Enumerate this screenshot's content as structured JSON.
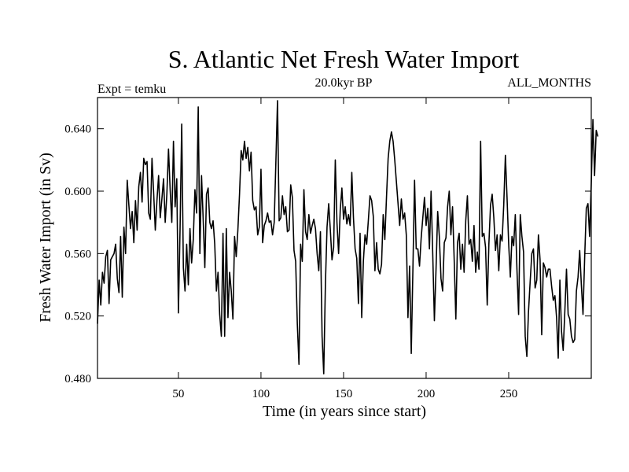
{
  "chart_data": {
    "type": "line",
    "title": "S. Atlantic Net Fresh Water Import",
    "subtitle": "20.0kyr BP",
    "left_note": "Expt = temku",
    "right_note": "ALL_MONTHS",
    "xlabel": "Time (in years since start)",
    "ylabel": "Fresh Water Import (in Sv)",
    "xlim": [
      1,
      300
    ],
    "ylim": [
      0.48,
      0.66
    ],
    "x_ticks": [
      50,
      100,
      150,
      200,
      250
    ],
    "x_tick_labels": [
      "50",
      "100",
      "150",
      "200",
      "250"
    ],
    "y_ticks": [
      0.48,
      0.52,
      0.56,
      0.6,
      0.64
    ],
    "y_tick_labels": [
      "0.480",
      "0.520",
      "0.560",
      "0.600",
      "0.640"
    ],
    "grid": false,
    "series": [
      {
        "name": "Fresh Water Import",
        "color": "#000000",
        "x_start": 1,
        "x_step": 1,
        "values": [
          0.515,
          0.543,
          0.527,
          0.548,
          0.541,
          0.558,
          0.562,
          0.528,
          0.556,
          0.558,
          0.56,
          0.566,
          0.544,
          0.535,
          0.571,
          0.532,
          0.577,
          0.56,
          0.607,
          0.591,
          0.576,
          0.587,
          0.567,
          0.594,
          0.575,
          0.603,
          0.612,
          0.593,
          0.621,
          0.617,
          0.619,
          0.586,
          0.582,
          0.621,
          0.599,
          0.575,
          0.594,
          0.61,
          0.583,
          0.595,
          0.608,
          0.58,
          0.598,
          0.627,
          0.601,
          0.58,
          0.632,
          0.59,
          0.608,
          0.522,
          0.576,
          0.643,
          0.551,
          0.536,
          0.566,
          0.54,
          0.576,
          0.554,
          0.569,
          0.601,
          0.586,
          0.654,
          0.56,
          0.61,
          0.582,
          0.551,
          0.598,
          0.602,
          0.58,
          0.576,
          0.581,
          0.566,
          0.536,
          0.548,
          0.521,
          0.507,
          0.573,
          0.507,
          0.576,
          0.519,
          0.548,
          0.536,
          0.518,
          0.571,
          0.558,
          0.575,
          0.598,
          0.626,
          0.62,
          0.632,
          0.621,
          0.628,
          0.613,
          0.625,
          0.594,
          0.588,
          0.59,
          0.572,
          0.577,
          0.614,
          0.567,
          0.578,
          0.581,
          0.586,
          0.58,
          0.581,
          0.572,
          0.58,
          0.618,
          0.658,
          0.581,
          0.583,
          0.597,
          0.585,
          0.59,
          0.574,
          0.575,
          0.604,
          0.596,
          0.562,
          0.555,
          0.515,
          0.489,
          0.566,
          0.555,
          0.601,
          0.574,
          0.569,
          0.585,
          0.573,
          0.578,
          0.582,
          0.576,
          0.56,
          0.549,
          0.574,
          0.507,
          0.483,
          0.54,
          0.577,
          0.592,
          0.575,
          0.556,
          0.564,
          0.62,
          0.58,
          0.56,
          0.588,
          0.602,
          0.582,
          0.59,
          0.579,
          0.585,
          0.578,
          0.612,
          0.583,
          0.563,
          0.557,
          0.528,
          0.573,
          0.519,
          0.555,
          0.572,
          0.566,
          0.581,
          0.597,
          0.594,
          0.584,
          0.549,
          0.567,
          0.55,
          0.547,
          0.553,
          0.585,
          0.569,
          0.596,
          0.621,
          0.632,
          0.638,
          0.632,
          0.62,
          0.606,
          0.592,
          0.578,
          0.595,
          0.582,
          0.586,
          0.572,
          0.519,
          0.552,
          0.496,
          0.55,
          0.607,
          0.563,
          0.563,
          0.552,
          0.57,
          0.583,
          0.596,
          0.578,
          0.589,
          0.563,
          0.6,
          0.56,
          0.517,
          0.55,
          0.587,
          0.571,
          0.544,
          0.536,
          0.567,
          0.57,
          0.59,
          0.6,
          0.572,
          0.59,
          0.556,
          0.518,
          0.567,
          0.573,
          0.55,
          0.566,
          0.548,
          0.581,
          0.597,
          0.566,
          0.569,
          0.555,
          0.578,
          0.548,
          0.561,
          0.55,
          0.632,
          0.571,
          0.573,
          0.564,
          0.527,
          0.566,
          0.591,
          0.598,
          0.583,
          0.562,
          0.572,
          0.549,
          0.572,
          0.568,
          0.591,
          0.623,
          0.596,
          0.566,
          0.545,
          0.571,
          0.565,
          0.585,
          0.55,
          0.521,
          0.585,
          0.571,
          0.561,
          0.507,
          0.494,
          0.523,
          0.542,
          0.56,
          0.563,
          0.538,
          0.543,
          0.572,
          0.556,
          0.508,
          0.554,
          0.551,
          0.545,
          0.55,
          0.55,
          0.539,
          0.53,
          0.533,
          0.519,
          0.493,
          0.543,
          0.51,
          0.498,
          0.523,
          0.55,
          0.521,
          0.518,
          0.507,
          0.503,
          0.505,
          0.536,
          0.545,
          0.562,
          0.54,
          0.521,
          0.557,
          0.589,
          0.592,
          0.571,
          0.605,
          0.646,
          0.61,
          0.639,
          0.635
        ]
      }
    ]
  }
}
